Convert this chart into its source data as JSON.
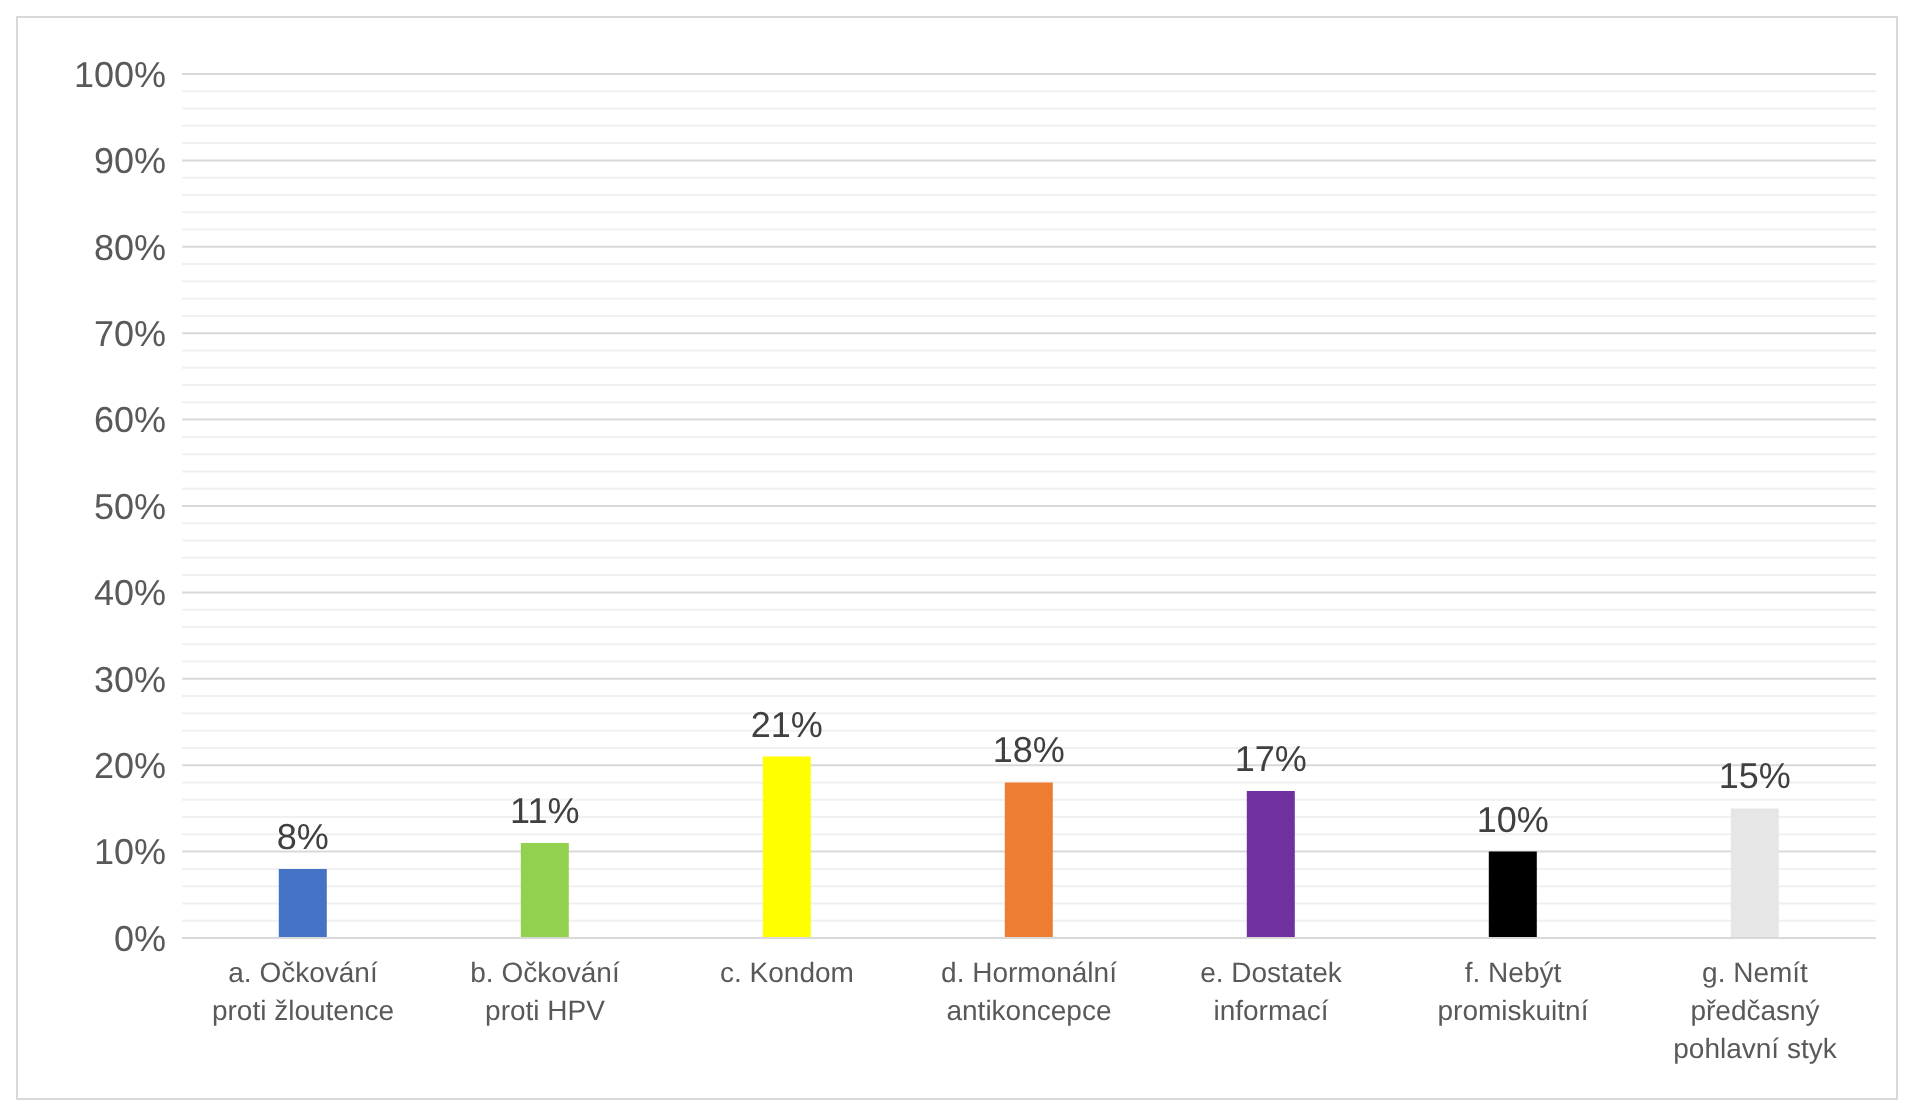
{
  "chart_data": {
    "type": "bar",
    "categories": [
      "a. Očkování proti žloutence",
      "b. Očkování proti HPV",
      "c. Kondom",
      "d. Hormonální antikoncepce",
      "e. Dostatek informací",
      "f. Nebýt promiskuitní",
      "g. Nemít předčasný pohlavní styk"
    ],
    "values": [
      8,
      11,
      21,
      18,
      17,
      10,
      15
    ],
    "colors": [
      "#4472c4",
      "#92d050",
      "#ffff00",
      "#ed7d31",
      "#7030a0",
      "#000000",
      "#e7e6e6"
    ],
    "value_labels": [
      "8%",
      "11%",
      "21%",
      "18%",
      "17%",
      "10%",
      "15%"
    ],
    "ylim": [
      0,
      100
    ],
    "yticks": [
      {
        "value": 0,
        "label": "0%"
      },
      {
        "value": 2,
        "label": null
      },
      {
        "value": 4,
        "label": null
      },
      {
        "value": 6,
        "label": null
      },
      {
        "value": 8,
        "label": null
      },
      {
        "value": 10,
        "label": "10%"
      },
      {
        "value": 12,
        "label": null
      },
      {
        "value": 14,
        "label": null
      },
      {
        "value": 16,
        "label": null
      },
      {
        "value": 18,
        "label": null
      },
      {
        "value": 20,
        "label": "20%"
      },
      {
        "value": 22,
        "label": null
      },
      {
        "value": 24,
        "label": null
      },
      {
        "value": 26,
        "label": null
      },
      {
        "value": 28,
        "label": null
      },
      {
        "value": 30,
        "label": "30%"
      },
      {
        "value": 32,
        "label": null
      },
      {
        "value": 34,
        "label": null
      },
      {
        "value": 36,
        "label": null
      },
      {
        "value": 38,
        "label": null
      },
      {
        "value": 40,
        "label": "40%"
      },
      {
        "value": 42,
        "label": null
      },
      {
        "value": 44,
        "label": null
      },
      {
        "value": 46,
        "label": null
      },
      {
        "value": 48,
        "label": null
      },
      {
        "value": 50,
        "label": "50%"
      },
      {
        "value": 52,
        "label": null
      },
      {
        "value": 54,
        "label": null
      },
      {
        "value": 56,
        "label": null
      },
      {
        "value": 58,
        "label": null
      },
      {
        "value": 60,
        "label": "60%"
      },
      {
        "value": 62,
        "label": null
      },
      {
        "value": 64,
        "label": null
      },
      {
        "value": 66,
        "label": null
      },
      {
        "value": 68,
        "label": null
      },
      {
        "value": 70,
        "label": "70%"
      },
      {
        "value": 72,
        "label": null
      },
      {
        "value": 74,
        "label": null
      },
      {
        "value": 76,
        "label": null
      },
      {
        "value": 78,
        "label": null
      },
      {
        "value": 80,
        "label": "80%"
      },
      {
        "value": 82,
        "label": null
      },
      {
        "value": 84,
        "label": null
      },
      {
        "value": 86,
        "label": null
      },
      {
        "value": 88,
        "label": null
      },
      {
        "value": 90,
        "label": "90%"
      },
      {
        "value": 92,
        "label": null
      },
      {
        "value": 94,
        "label": null
      },
      {
        "value": 96,
        "label": null
      },
      {
        "value": 98,
        "label": null
      },
      {
        "value": 100,
        "label": "100%"
      }
    ],
    "grid": "y",
    "legend": false
  }
}
